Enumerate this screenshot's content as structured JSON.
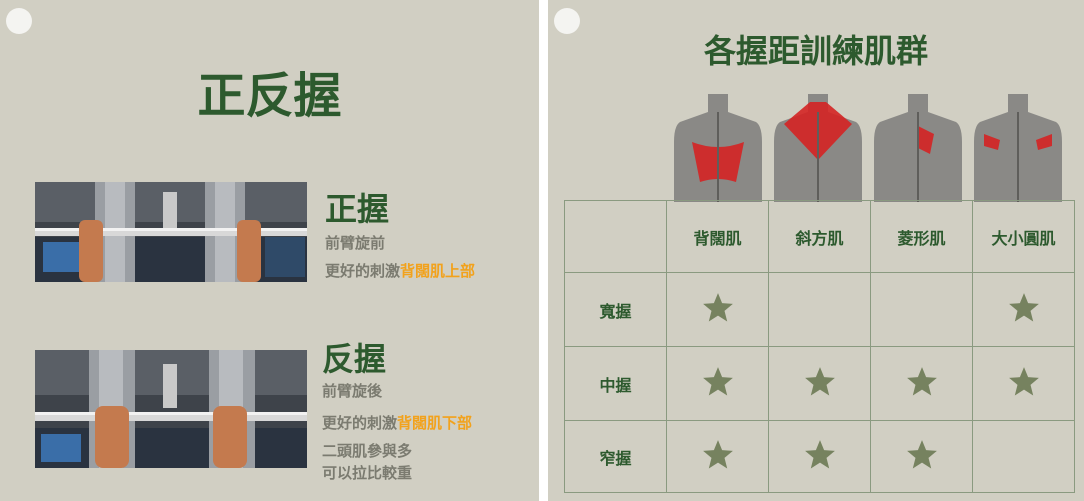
{
  "left": {
    "title": "正反握",
    "overhand": {
      "title": "正握",
      "line1": "前臂旋前",
      "line2_prefix": "更好的刺激",
      "line2_highlight": "背闊肌上部"
    },
    "underhand": {
      "title": "反握",
      "line1": "前臂旋後",
      "line2_prefix": "更好的刺激",
      "line2_highlight": "背闊肌下部",
      "line3": "二頭肌參與多",
      "line4": "可以拉比較重"
    }
  },
  "right": {
    "title": "各握距訓練肌群",
    "columns": [
      "背闊肌",
      "斜方肌",
      "菱形肌",
      "大小圓肌"
    ],
    "rows": [
      {
        "label": "寬握",
        "stars": [
          true,
          false,
          false,
          true
        ]
      },
      {
        "label": "中握",
        "stars": [
          true,
          true,
          true,
          true
        ]
      },
      {
        "label": "窄握",
        "stars": [
          true,
          true,
          true,
          false
        ]
      }
    ]
  },
  "colors": {
    "card_bg": "#d1cfc3",
    "title_green": "#2d5a2e",
    "text_gray": "#7b7b70",
    "highlight_orange": "#f2a21c",
    "star_green": "#76825f",
    "muscle_red": "#d42424"
  },
  "icons": {
    "star": "star-icon",
    "hole": "punch-hole-icon"
  }
}
